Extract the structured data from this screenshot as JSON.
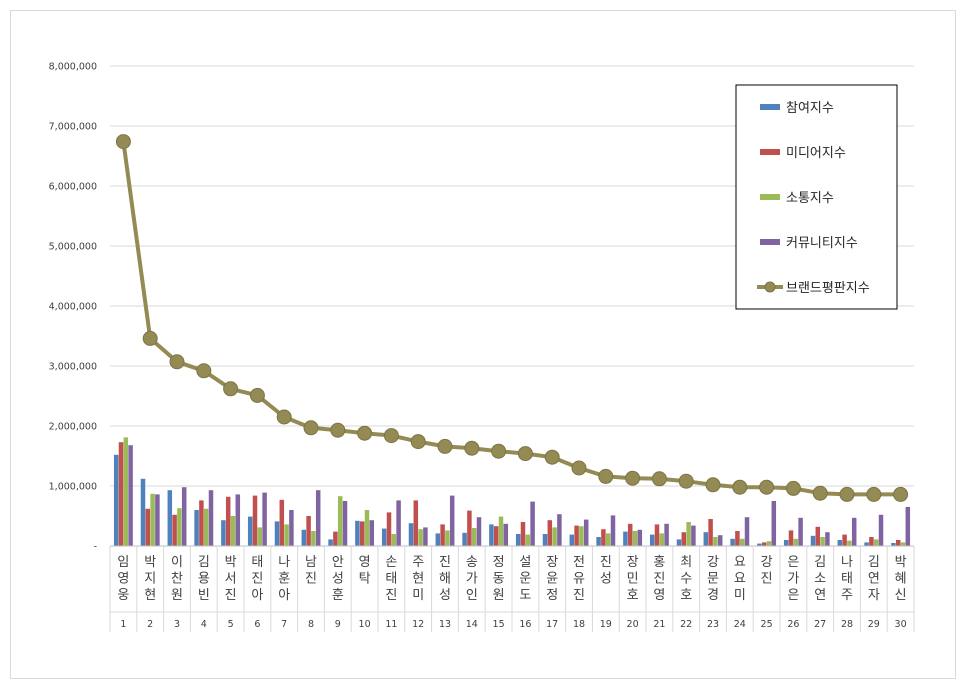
{
  "chart_data": {
    "type": "bar",
    "title": "",
    "xlabel": "",
    "ylabel": "",
    "ylim": [
      0,
      8000000
    ],
    "yticks": [
      0,
      1000000,
      2000000,
      3000000,
      4000000,
      5000000,
      6000000,
      7000000,
      8000000
    ],
    "ytick_labels": [
      "-",
      "1,000,000",
      "2,000,000",
      "3,000,000",
      "4,000,000",
      "5,000,000",
      "6,000,000",
      "7,000,000",
      "8,000,000"
    ],
    "grid": true,
    "legend_position": "top-right",
    "categories": [
      "임영웅",
      "박지현",
      "이찬원",
      "김용빈",
      "박서진",
      "태진아",
      "나훈아",
      "남진",
      "안성훈",
      "영탁",
      "손태진",
      "주현미",
      "진해성",
      "송가인",
      "정동원",
      "설운도",
      "장윤정",
      "전유진",
      "진성",
      "장민호",
      "홍진영",
      "최수호",
      "강문경",
      "요요미",
      "강진",
      "은가은",
      "김소연",
      "나태주",
      "김연자",
      "박혜신"
    ],
    "ranks": [
      "1",
      "2",
      "3",
      "4",
      "5",
      "6",
      "7",
      "8",
      "9",
      "10",
      "11",
      "12",
      "13",
      "14",
      "15",
      "16",
      "17",
      "18",
      "19",
      "20",
      "21",
      "22",
      "23",
      "24",
      "25",
      "26",
      "27",
      "28",
      "29",
      "30"
    ],
    "series": [
      {
        "name": "참여지수",
        "type": "bar",
        "color": "#4f81bd",
        "values": [
          1520000,
          1120000,
          930000,
          600000,
          430000,
          490000,
          410000,
          270000,
          110000,
          420000,
          290000,
          380000,
          210000,
          220000,
          360000,
          200000,
          200000,
          190000,
          150000,
          240000,
          190000,
          110000,
          230000,
          120000,
          40000,
          100000,
          170000,
          100000,
          60000,
          50000
        ]
      },
      {
        "name": "미디어지수",
        "type": "bar",
        "color": "#c0504d",
        "values": [
          1730000,
          620000,
          520000,
          760000,
          820000,
          840000,
          770000,
          500000,
          240000,
          410000,
          560000,
          760000,
          360000,
          590000,
          330000,
          400000,
          430000,
          340000,
          280000,
          370000,
          360000,
          230000,
          450000,
          250000,
          60000,
          260000,
          320000,
          190000,
          150000,
          100000
        ]
      },
      {
        "name": "소통지수",
        "type": "bar",
        "color": "#9bbb59",
        "values": [
          1810000,
          870000,
          630000,
          620000,
          500000,
          310000,
          360000,
          250000,
          830000,
          600000,
          200000,
          280000,
          260000,
          300000,
          490000,
          190000,
          310000,
          330000,
          210000,
          250000,
          210000,
          400000,
          150000,
          120000,
          80000,
          120000,
          150000,
          90000,
          110000,
          60000
        ]
      },
      {
        "name": "커뮤니티지수",
        "type": "bar",
        "color": "#8064a2",
        "values": [
          1680000,
          860000,
          980000,
          930000,
          860000,
          890000,
          600000,
          930000,
          750000,
          430000,
          760000,
          310000,
          840000,
          480000,
          370000,
          740000,
          530000,
          440000,
          510000,
          270000,
          370000,
          340000,
          180000,
          480000,
          750000,
          470000,
          230000,
          470000,
          520000,
          650000
        ]
      },
      {
        "name": "브랜드평판지수",
        "type": "line",
        "color": "#948a54",
        "values": [
          6740000,
          3460000,
          3070000,
          2920000,
          2620000,
          2510000,
          2150000,
          1970000,
          1930000,
          1880000,
          1840000,
          1740000,
          1660000,
          1630000,
          1580000,
          1540000,
          1480000,
          1300000,
          1160000,
          1130000,
          1120000,
          1080000,
          1020000,
          980000,
          980000,
          960000,
          880000,
          860000,
          860000,
          860000
        ]
      }
    ]
  }
}
